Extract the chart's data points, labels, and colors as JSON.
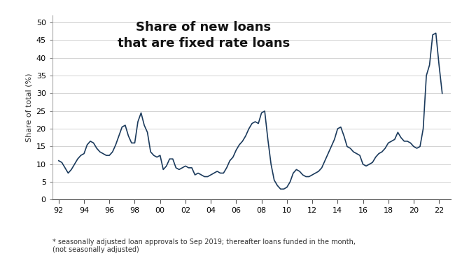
{
  "title_line1": "Share of new loans",
  "title_line2": "that are fixed rate loans",
  "ylabel": "Share of total (%)",
  "footnote": "* seasonally adjusted loan approvals to Sep 2019; thereafter loans funded in the month,\n(not seasonally adjusted)",
  "line_color": "#1b3a5c",
  "background_color": "#ffffff",
  "plot_bg_color": "#ffffff",
  "ylim": [
    0,
    52
  ],
  "yticks": [
    0,
    5,
    10,
    15,
    20,
    25,
    30,
    35,
    40,
    45,
    50
  ],
  "xtick_labels": [
    "92",
    "94",
    "96",
    "98",
    "00",
    "02",
    "04",
    "06",
    "08",
    "10",
    "12",
    "14",
    "16",
    "18",
    "20",
    "22"
  ],
  "series": [
    1992.0,
    11.0,
    1992.25,
    10.5,
    1992.5,
    9.0,
    1992.75,
    7.5,
    1993.0,
    8.5,
    1993.25,
    10.0,
    1993.5,
    11.5,
    1993.75,
    12.5,
    1994.0,
    13.0,
    1994.25,
    15.5,
    1994.5,
    16.5,
    1994.75,
    16.0,
    1995.0,
    14.5,
    1995.25,
    13.5,
    1995.5,
    13.0,
    1995.75,
    12.5,
    1996.0,
    12.5,
    1996.25,
    13.5,
    1996.5,
    15.5,
    1996.75,
    18.0,
    1997.0,
    20.5,
    1997.25,
    21.0,
    1997.5,
    18.0,
    1997.75,
    16.0,
    1998.0,
    16.0,
    1998.25,
    22.0,
    1998.5,
    24.5,
    1998.75,
    21.0,
    1999.0,
    19.0,
    1999.25,
    13.5,
    1999.5,
    12.5,
    1999.75,
    12.0,
    2000.0,
    12.5,
    2000.25,
    8.5,
    2000.5,
    9.5,
    2000.75,
    11.5,
    2001.0,
    11.5,
    2001.25,
    9.0,
    2001.5,
    8.5,
    2001.75,
    9.0,
    2002.0,
    9.5,
    2002.25,
    9.0,
    2002.5,
    9.0,
    2002.75,
    7.0,
    2003.0,
    7.5,
    2003.25,
    7.0,
    2003.5,
    6.5,
    2003.75,
    6.5,
    2004.0,
    7.0,
    2004.25,
    7.5,
    2004.5,
    8.0,
    2004.75,
    7.5,
    2005.0,
    7.5,
    2005.25,
    9.0,
    2005.5,
    11.0,
    2005.75,
    12.0,
    2006.0,
    14.0,
    2006.25,
    15.5,
    2006.5,
    16.5,
    2006.75,
    18.0,
    2007.0,
    20.0,
    2007.25,
    21.5,
    2007.5,
    22.0,
    2007.75,
    21.5,
    2008.0,
    24.5,
    2008.25,
    25.0,
    2008.5,
    17.0,
    2008.75,
    10.0,
    2009.0,
    5.5,
    2009.25,
    4.0,
    2009.5,
    3.0,
    2009.75,
    3.0,
    2010.0,
    3.5,
    2010.25,
    5.0,
    2010.5,
    7.5,
    2010.75,
    8.5,
    2011.0,
    8.0,
    2011.25,
    7.0,
    2011.5,
    6.5,
    2011.75,
    6.5,
    2012.0,
    7.0,
    2012.25,
    7.5,
    2012.5,
    8.0,
    2012.75,
    9.0,
    2013.0,
    11.0,
    2013.25,
    13.0,
    2013.5,
    15.0,
    2013.75,
    17.0,
    2014.0,
    20.0,
    2014.25,
    20.5,
    2014.5,
    18.0,
    2014.75,
    15.0,
    2015.0,
    14.5,
    2015.25,
    13.5,
    2015.5,
    13.0,
    2015.75,
    12.5,
    2016.0,
    10.0,
    2016.25,
    9.5,
    2016.5,
    10.0,
    2016.75,
    10.5,
    2017.0,
    12.0,
    2017.25,
    13.0,
    2017.5,
    13.5,
    2017.75,
    14.5,
    2018.0,
    16.0,
    2018.25,
    16.5,
    2018.5,
    17.0,
    2018.75,
    19.0,
    2019.0,
    17.5,
    2019.25,
    16.5,
    2019.5,
    16.5,
    2019.75,
    16.0,
    2020.0,
    15.0,
    2020.25,
    14.5,
    2020.5,
    15.0,
    2020.75,
    20.0,
    2021.0,
    35.0,
    2021.25,
    38.0,
    2021.5,
    46.5,
    2021.75,
    47.0,
    2022.0,
    38.0,
    2022.25,
    30.0
  ]
}
